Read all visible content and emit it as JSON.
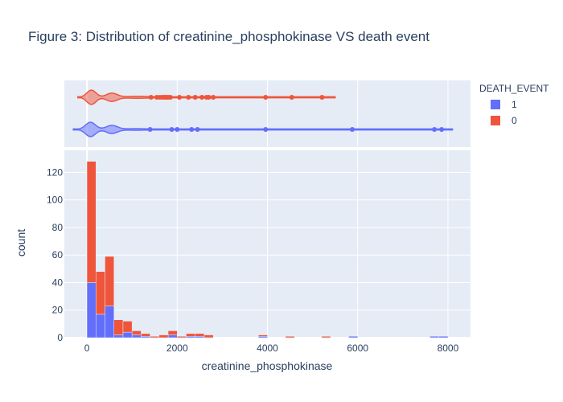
{
  "chart_data": {
    "type": "bar",
    "title": "Figure 3: Distribution of creatinine_phosphokinase VS death event",
    "xlabel": "creatinine_phosphokinase",
    "ylabel": "count",
    "xlim": [
      -500,
      8500
    ],
    "ylim": [
      0,
      136
    ],
    "x_ticks": [
      0,
      2000,
      4000,
      6000,
      8000
    ],
    "y_ticks": [
      0,
      20,
      40,
      60,
      80,
      100,
      120
    ],
    "barmode": "stack",
    "bin_width": 200,
    "legend": {
      "title": "DEATH_EVENT",
      "position": "top-right"
    },
    "series": [
      {
        "name": "1",
        "color": "#636efa",
        "bins": [
          {
            "x0": 0,
            "value": 40
          },
          {
            "x0": 200,
            "value": 17
          },
          {
            "x0": 400,
            "value": 23
          },
          {
            "x0": 600,
            "value": 2
          },
          {
            "x0": 800,
            "value": 4
          },
          {
            "x0": 1000,
            "value": 2
          },
          {
            "x0": 1200,
            "value": 1
          },
          {
            "x0": 1800,
            "value": 2
          },
          {
            "x0": 2200,
            "value": 1
          },
          {
            "x0": 2400,
            "value": 1
          },
          {
            "x0": 3800,
            "value": 1
          },
          {
            "x0": 5800,
            "value": 1
          },
          {
            "x0": 7600,
            "value": 1
          },
          {
            "x0": 7800,
            "value": 1
          }
        ]
      },
      {
        "name": "0",
        "color": "#ef553b",
        "bins": [
          {
            "x0": 0,
            "value": 88
          },
          {
            "x0": 200,
            "value": 31
          },
          {
            "x0": 400,
            "value": 36
          },
          {
            "x0": 600,
            "value": 11
          },
          {
            "x0": 800,
            "value": 8
          },
          {
            "x0": 1000,
            "value": 3
          },
          {
            "x0": 1200,
            "value": 2
          },
          {
            "x0": 1400,
            "value": 1
          },
          {
            "x0": 1600,
            "value": 2
          },
          {
            "x0": 1800,
            "value": 3
          },
          {
            "x0": 2000,
            "value": 1
          },
          {
            "x0": 2200,
            "value": 2
          },
          {
            "x0": 2400,
            "value": 2
          },
          {
            "x0": 2600,
            "value": 2
          },
          {
            "x0": 3800,
            "value": 1
          },
          {
            "x0": 4400,
            "value": 1
          },
          {
            "x0": 5200,
            "value": 1
          }
        ]
      }
    ],
    "marginal_violin": [
      {
        "name": "0",
        "color": "#ef553b",
        "range": [
          -200,
          5500
        ],
        "outliers": [
          1420,
          1550,
          1620,
          1680,
          1720,
          1760,
          1800,
          1850,
          2050,
          2250,
          2400,
          2550,
          2650,
          2700,
          2800,
          3960,
          4540,
          5210
        ]
      },
      {
        "name": "1",
        "color": "#636efa",
        "range": [
          -300,
          8100
        ],
        "outliers": [
          1400,
          1880,
          2000,
          2320,
          2450,
          3960,
          5880,
          7700,
          7860
        ]
      }
    ]
  }
}
